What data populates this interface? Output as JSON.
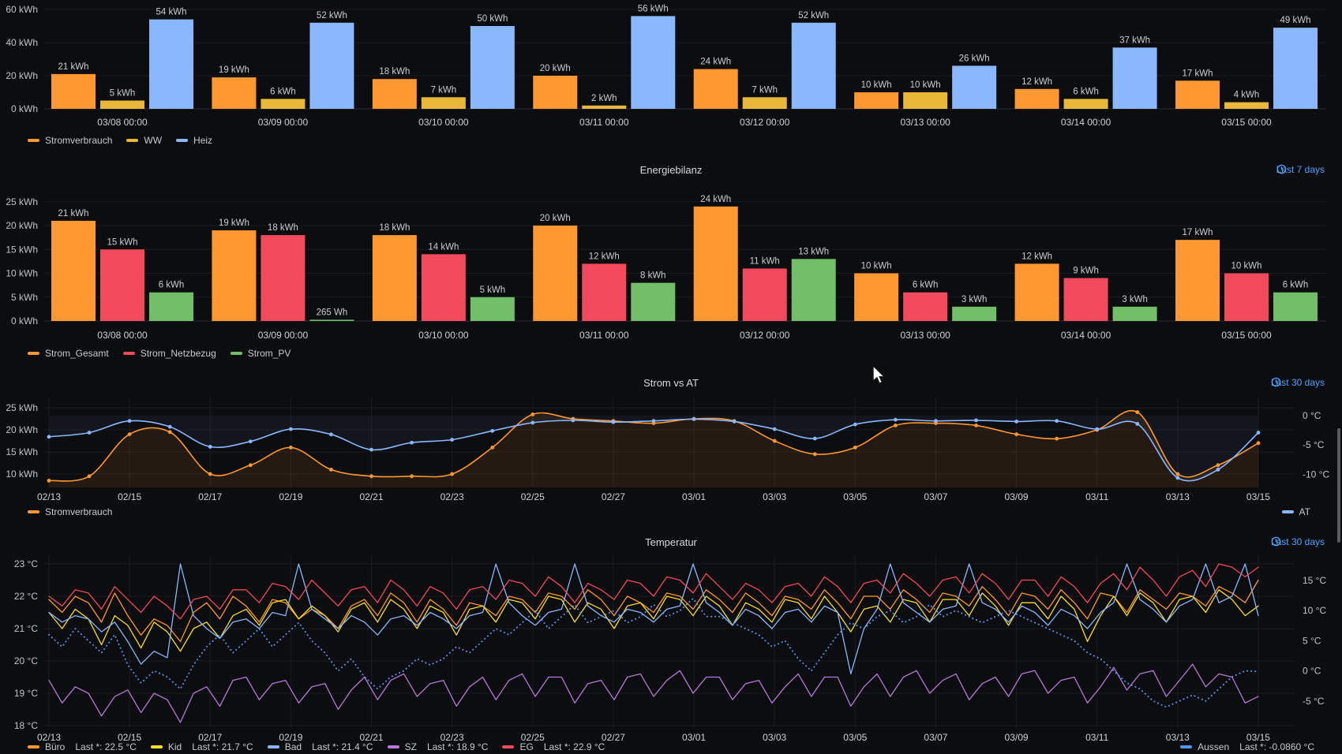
{
  "ui": {
    "link_color": "#4da2ff",
    "grid_color": "rgba(204,204,220,0.08)",
    "tick_color": "#c2c3c7"
  },
  "chart_data": [
    {
      "type": "bar",
      "title": "",
      "categories": [
        "03/08 00:00",
        "03/09 00:00",
        "03/10 00:00",
        "03/11 00:00",
        "03/12 00:00",
        "03/13 00:00",
        "03/14 00:00",
        "03/15 00:00"
      ],
      "ylim": [
        0,
        60
      ],
      "yticks": {
        "values": [
          0,
          20,
          40,
          60
        ],
        "labels": [
          "0 kWh",
          "20 kWh",
          "40 kWh",
          "60 kWh"
        ]
      },
      "series": [
        {
          "name": "Stromverbrauch",
          "color": "#FF9830",
          "values": [
            21,
            19,
            18,
            20,
            24,
            10,
            12,
            17
          ],
          "labels": [
            "21 kWh",
            "19 kWh",
            "18 kWh",
            "20 kWh",
            "24 kWh",
            "10 kWh",
            "12 kWh",
            "17 kWh"
          ]
        },
        {
          "name": "WW",
          "color": "#EAB839",
          "values": [
            5,
            6,
            7,
            2,
            7,
            10,
            6,
            4
          ],
          "labels": [
            "5 kWh",
            "6 kWh",
            "7 kWh",
            "2 kWh",
            "7 kWh",
            "10 kWh",
            "6 kWh",
            "4 kWh"
          ]
        },
        {
          "name": "Heiz",
          "color": "#8AB8FF",
          "values": [
            54,
            52,
            50,
            56,
            52,
            26,
            37,
            49
          ],
          "labels": [
            "54 kWh",
            "52 kWh",
            "50 kWh",
            "56 kWh",
            "52 kWh",
            "26 kWh",
            "37 kWh",
            "49 kWh"
          ]
        }
      ]
    },
    {
      "type": "bar",
      "title": "Energiebilanz",
      "time_range": "Last 7 days",
      "categories": [
        "03/08 00:00",
        "03/09 00:00",
        "03/10 00:00",
        "03/11 00:00",
        "03/12 00:00",
        "03/13 00:00",
        "03/14 00:00",
        "03/15 00:00"
      ],
      "ylim": [
        0,
        25
      ],
      "yticks": {
        "values": [
          0,
          5,
          10,
          15,
          20,
          25
        ],
        "labels": [
          "0 kWh",
          "5 kWh",
          "10 kWh",
          "15 kWh",
          "20 kWh",
          "25 kWh"
        ]
      },
      "series": [
        {
          "name": "Strom_Gesamt",
          "color": "#FF9830",
          "values": [
            21,
            19,
            18,
            20,
            24,
            10,
            12,
            17
          ],
          "labels": [
            "21 kWh",
            "19 kWh",
            "18 kWh",
            "20 kWh",
            "24 kWh",
            "10 kWh",
            "12 kWh",
            "17 kWh"
          ]
        },
        {
          "name": "Strom_Netzbezug",
          "color": "#F2495C",
          "values": [
            15,
            18,
            14,
            12,
            11,
            6,
            9,
            10
          ],
          "labels": [
            "15 kWh",
            "18 kWh",
            "14 kWh",
            "12 kWh",
            "11 kWh",
            "6 kWh",
            "9 kWh",
            "10 kWh"
          ]
        },
        {
          "name": "Strom_PV",
          "color": "#73BF69",
          "values": [
            6,
            0.265,
            5,
            8,
            13,
            3,
            3,
            6
          ],
          "labels": [
            "6 kWh",
            "265 Wh",
            "5 kWh",
            "8 kWh",
            "13 kWh",
            "3 kWh",
            "3 kWh",
            "6 kWh"
          ]
        }
      ]
    },
    {
      "type": "line",
      "title": "Strom vs AT",
      "time_range": "Last 30 days",
      "x_start": "02/13",
      "x_end": "03/15",
      "x_ticks": [
        "02/13",
        "02/15",
        "02/17",
        "02/19",
        "02/21",
        "02/23",
        "02/25",
        "02/27",
        "03/01",
        "03/03",
        "03/05",
        "03/07",
        "03/09",
        "03/11",
        "03/13",
        "03/15"
      ],
      "left_axis": {
        "unit": "kWh",
        "values": [
          25,
          20,
          15,
          10
        ],
        "labels": [
          "25 kWh",
          "20 kWh",
          "15 kWh",
          "10 kWh"
        ]
      },
      "right_axis": {
        "unit": "°C",
        "values": [
          0,
          -5,
          -10
        ],
        "labels": [
          "0 °C",
          "-5 °C",
          "-10 °C"
        ]
      },
      "series": [
        {
          "name": "Stromverbrauch",
          "color": "#FF9830",
          "axis": "left",
          "legend_side": "left",
          "values": [
            8.5,
            9.5,
            19,
            19.5,
            10,
            12,
            16,
            11,
            9.5,
            9.5,
            10,
            16,
            23.5,
            22.5,
            22,
            21.5,
            22.5,
            22,
            17.5,
            14.5,
            16,
            21,
            21.5,
            21,
            19,
            18,
            20,
            24,
            10,
            12,
            17
          ]
        },
        {
          "name": "AT",
          "color": "#8AB8FF",
          "axis": "right",
          "legend_side": "right",
          "values": [
            -3.6,
            -2.9,
            -0.9,
            -1.9,
            -5.3,
            -4.4,
            -2.3,
            -3.2,
            -5.8,
            -4.6,
            -4.1,
            -2.6,
            -1.2,
            -0.8,
            -1.1,
            -0.9,
            -0.6,
            -1.0,
            -2.3,
            -3.9,
            -1.5,
            -0.7,
            -0.9,
            -0.8,
            -1.0,
            -0.9,
            -2.3,
            -1.4,
            -10.6,
            -9.2,
            -2.9
          ]
        }
      ]
    },
    {
      "type": "line",
      "title": "Temperatur",
      "time_range": "Last 30 days",
      "x_start": "02/13",
      "x_end": "03/15",
      "points_per_day": 3,
      "x_ticks": [
        "02/13",
        "02/15",
        "02/17",
        "02/19",
        "02/21",
        "02/23",
        "02/25",
        "02/27",
        "03/01",
        "03/03",
        "03/05",
        "03/07",
        "03/09",
        "03/11",
        "03/13",
        "03/15"
      ],
      "left_axis": {
        "unit": "°C",
        "values": [
          23,
          22,
          21,
          20,
          19,
          18
        ],
        "labels": [
          "23 °C",
          "22 °C",
          "21 °C",
          "20 °C",
          "19 °C",
          "18 °C"
        ]
      },
      "right_axis": {
        "unit": "°C",
        "values": [
          15,
          10,
          5,
          0,
          -5
        ],
        "labels": [
          "15 °C",
          "10 °C",
          "5 °C",
          "0 °C",
          "-5 °C"
        ]
      },
      "series": [
        {
          "name": "Büro",
          "color": "#FF9830",
          "axis": "left",
          "style": "solid",
          "legend_side": "left",
          "legend_value": "Last *: 22.5 °C",
          "values": [
            21.9,
            21.5,
            22.0,
            21.8,
            21.2,
            22.1,
            21.4,
            20.8,
            21.3,
            21.1,
            20.6,
            21.5,
            21.8,
            21.3,
            22.0,
            21.7,
            21.2,
            21.9,
            21.8,
            21.3,
            21.6,
            21.4,
            21.0,
            21.7,
            21.9,
            21.4,
            22.1,
            21.8,
            21.2,
            21.9,
            21.6,
            21.1,
            21.8,
            21.7,
            21.4,
            22.0,
            21.9,
            21.5,
            22.1,
            22.0,
            21.6,
            22.2,
            21.9,
            21.4,
            22.0,
            21.8,
            21.5,
            22.1,
            22.0,
            21.6,
            22.2,
            21.9,
            21.5,
            22.1,
            21.8,
            21.4,
            22.0,
            21.9,
            21.6,
            22.2,
            21.8,
            21.3,
            22.0,
            22.0,
            21.6,
            22.2,
            21.9,
            21.5,
            22.1,
            22.0,
            21.7,
            22.3,
            21.9,
            21.4,
            22.1,
            22.0,
            21.6,
            22.2,
            21.8,
            21.3,
            22.1,
            22.0,
            21.5,
            22.2,
            21.9,
            21.6,
            22.1,
            22.0,
            21.7,
            22.3,
            22.1,
            21.8,
            22.5
          ]
        },
        {
          "name": "Kid",
          "color": "#FADE2A",
          "axis": "left",
          "style": "solid",
          "legend_side": "left",
          "legend_value": "Last *: 21.7 °C",
          "values": [
            21.5,
            21.0,
            21.6,
            21.3,
            20.5,
            21.4,
            21.1,
            20.4,
            21.2,
            20.9,
            20.3,
            21.0,
            21.2,
            20.7,
            21.4,
            21.6,
            21.1,
            21.8,
            21.9,
            21.3,
            21.7,
            21.4,
            20.9,
            21.6,
            21.8,
            21.2,
            21.9,
            21.6,
            21.0,
            21.7,
            21.5,
            20.8,
            21.6,
            21.7,
            21.2,
            21.9,
            21.8,
            21.3,
            22.0,
            21.9,
            21.2,
            21.8,
            21.6,
            21.0,
            21.7,
            21.8,
            21.3,
            22.0,
            21.9,
            21.4,
            22.0,
            21.7,
            21.1,
            21.8,
            21.6,
            21.2,
            21.9,
            21.8,
            21.3,
            22.0,
            21.5,
            20.9,
            21.6,
            21.7,
            21.2,
            21.9,
            21.8,
            21.2,
            21.9,
            21.9,
            21.4,
            22.1,
            21.7,
            21.1,
            21.8,
            21.8,
            21.3,
            22.0,
            21.6,
            20.6,
            21.4,
            22.0,
            21.4,
            22.1,
            21.8,
            21.2,
            21.9,
            22.0,
            21.5,
            22.2,
            21.9,
            21.4,
            21.7
          ]
        },
        {
          "name": "Bad",
          "color": "#8AB8FF",
          "axis": "left",
          "style": "solid",
          "legend_side": "left",
          "legend_value": "Last *: 21.4 °C",
          "values": [
            21.5,
            21.2,
            21.4,
            21.3,
            20.9,
            21.2,
            20.6,
            19.9,
            20.3,
            20.1,
            23.3,
            21.4,
            21.0,
            20.7,
            21.2,
            21.3,
            21.0,
            21.5,
            21.4,
            23.2,
            21.6,
            21.3,
            21.0,
            21.4,
            21.2,
            20.8,
            21.3,
            21.4,
            21.1,
            21.5,
            21.3,
            21.0,
            21.4,
            21.5,
            23.4,
            21.8,
            21.4,
            21.1,
            21.5,
            21.6,
            23.3,
            21.7,
            21.4,
            21.2,
            21.6,
            21.5,
            21.2,
            21.6,
            21.7,
            23.2,
            21.8,
            21.5,
            21.1,
            21.6,
            21.4,
            21.0,
            21.5,
            21.6,
            21.2,
            21.7,
            21.5,
            19.6,
            21.0,
            21.6,
            23.3,
            21.8,
            21.5,
            21.2,
            21.6,
            21.7,
            23.2,
            21.8,
            21.6,
            21.2,
            21.7,
            21.5,
            21.1,
            21.6,
            21.4,
            21.0,
            21.5,
            21.8,
            23.4,
            21.9,
            21.6,
            21.2,
            21.7,
            21.9,
            23.5,
            21.8,
            22.0,
            23.3,
            21.4
          ]
        },
        {
          "name": "SZ",
          "color": "#B877D9",
          "axis": "left",
          "style": "solid",
          "legend_side": "left",
          "legend_value": "Last *: 18.9 °C",
          "values": [
            19.4,
            18.7,
            19.2,
            19.0,
            18.3,
            18.9,
            19.1,
            18.4,
            19.0,
            18.8,
            18.1,
            19.0,
            19.2,
            18.6,
            19.4,
            19.5,
            18.8,
            19.3,
            19.4,
            18.7,
            19.2,
            19.3,
            18.5,
            19.1,
            19.5,
            18.8,
            19.4,
            19.6,
            18.9,
            19.3,
            19.4,
            18.6,
            19.2,
            19.5,
            18.8,
            19.4,
            19.6,
            18.9,
            19.5,
            19.5,
            18.7,
            19.3,
            19.4,
            18.8,
            19.5,
            19.6,
            18.9,
            19.4,
            19.7,
            19.0,
            19.5,
            19.5,
            18.8,
            19.3,
            19.4,
            18.7,
            19.2,
            19.6,
            18.9,
            19.5,
            19.5,
            18.6,
            19.2,
            19.6,
            18.9,
            19.5,
            19.7,
            19.0,
            19.4,
            19.6,
            18.8,
            19.3,
            19.5,
            18.9,
            19.6,
            19.7,
            19.0,
            19.4,
            19.5,
            18.7,
            19.2,
            19.8,
            19.1,
            19.6,
            19.7,
            18.9,
            19.4,
            19.9,
            19.2,
            19.6,
            19.5,
            18.7,
            18.9
          ]
        },
        {
          "name": "EG",
          "color": "#F2495C",
          "axis": "left",
          "style": "solid",
          "legend_side": "left",
          "legend_value": "Last *: 22.9 °C",
          "values": [
            22.0,
            21.7,
            22.2,
            22.1,
            21.6,
            22.3,
            21.9,
            21.5,
            22.0,
            21.7,
            21.3,
            21.9,
            22.0,
            21.6,
            22.2,
            22.2,
            21.8,
            22.4,
            22.3,
            21.9,
            22.5,
            22.1,
            21.7,
            22.2,
            22.3,
            21.8,
            22.5,
            22.2,
            21.7,
            22.3,
            22.1,
            21.6,
            22.2,
            22.3,
            21.9,
            22.5,
            22.4,
            22.0,
            22.6,
            22.3,
            21.8,
            22.4,
            22.2,
            21.9,
            22.5,
            22.4,
            22.0,
            22.6,
            22.5,
            22.1,
            22.7,
            22.3,
            21.9,
            22.4,
            22.2,
            21.8,
            22.3,
            22.4,
            22.0,
            22.6,
            22.3,
            21.8,
            22.4,
            22.5,
            22.1,
            22.7,
            22.4,
            22.0,
            22.5,
            22.6,
            22.1,
            22.7,
            22.4,
            21.9,
            22.5,
            22.5,
            22.0,
            22.6,
            22.3,
            21.8,
            22.4,
            22.7,
            22.2,
            22.9,
            22.5,
            22.0,
            22.6,
            22.8,
            22.3,
            23.0,
            22.9,
            22.6,
            22.9
          ]
        },
        {
          "name": "Aussen",
          "color": "#5794F2",
          "axis": "right",
          "style": "dotted",
          "legend_side": "right",
          "legend_value": "Last *: -0.0860 °C",
          "values": [
            6,
            4,
            7,
            5,
            3,
            6,
            1,
            -2,
            0,
            -1,
            -3,
            1,
            4,
            6,
            3,
            5,
            7,
            4,
            6,
            8,
            5,
            3,
            0,
            2,
            -1,
            -3,
            -1,
            0,
            2,
            1,
            2,
            4,
            3,
            5,
            7,
            6,
            8,
            10,
            7,
            9,
            11,
            8,
            9,
            10,
            8,
            9,
            11,
            9,
            10,
            12,
            9,
            9,
            8,
            7,
            6,
            4,
            5,
            2,
            0,
            3,
            6,
            8,
            7,
            9,
            10,
            8,
            9,
            11,
            9,
            10,
            9,
            8,
            9,
            10,
            9,
            8,
            7,
            6,
            5,
            3,
            2,
            0,
            -2,
            -3,
            -5,
            -6,
            -5,
            -4,
            -5,
            -3,
            -1,
            0,
            -0.1
          ]
        }
      ]
    }
  ]
}
